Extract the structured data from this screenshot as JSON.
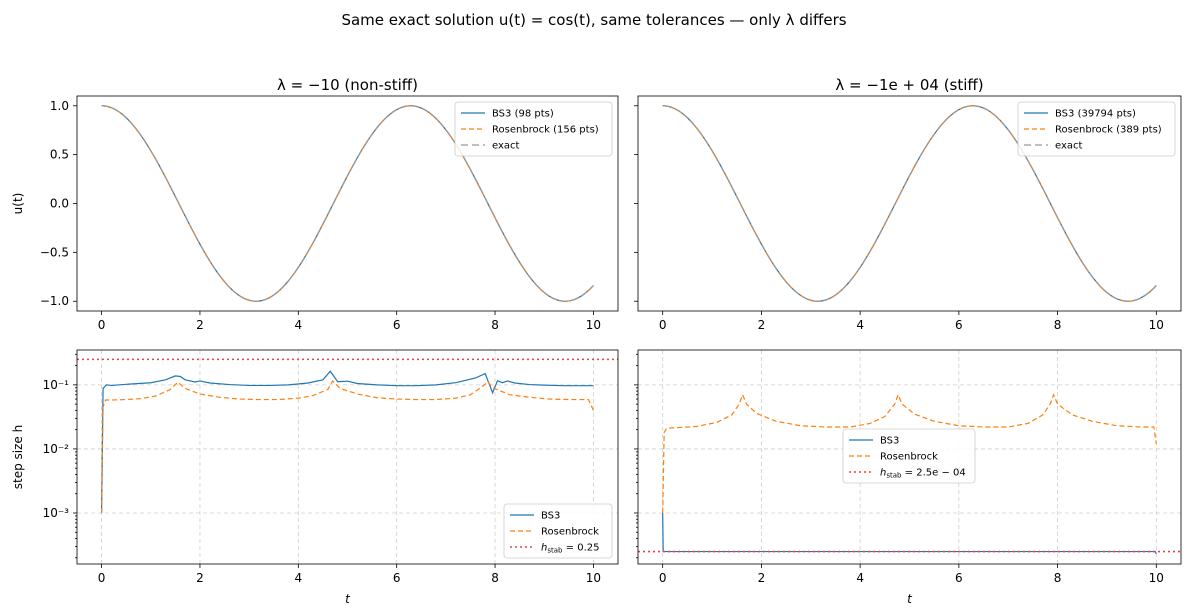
{
  "figure": {
    "suptitle": "Same exact solution u(t) = cos(t), same tolerances — only λ differs"
  },
  "colors": {
    "bs3": "#1f77b4",
    "rosenbrock": "#ff7f0e",
    "exact": "#999999",
    "stab": "#e8453c"
  },
  "chart_data": [
    {
      "id": "top-left",
      "type": "line",
      "title": "λ = −10 (non-stiff)",
      "xlabel": "",
      "ylabel": "u(t)",
      "xlim": [
        -0.5,
        10.5
      ],
      "ylim": [
        -1.1,
        1.1
      ],
      "xscale": "linear",
      "yscale": "linear",
      "xticks": [
        0,
        2,
        4,
        6,
        8,
        10
      ],
      "xtick_labels": [
        "0",
        "2",
        "4",
        "6",
        "8",
        "10"
      ],
      "yticks": [
        1.0,
        0.5,
        0.0,
        -0.5,
        -1.0
      ],
      "ytick_labels": [
        "1.0",
        "0.5",
        "0.0",
        "−0.5",
        "−1.0"
      ],
      "grid": false,
      "legend_position": "top-right",
      "series": [
        {
          "name": "BS3 (98 pts)",
          "style": "solid",
          "color_key": "bs3",
          "function": "cos",
          "t_range": [
            0,
            10
          ]
        },
        {
          "name": "Rosenbrock (156 pts)",
          "style": "dashed",
          "color_key": "rosenbrock",
          "function": "cos",
          "t_range": [
            0,
            10
          ]
        },
        {
          "name": "exact",
          "style": "longdash",
          "color_key": "exact",
          "function": "cos",
          "t_range": [
            0,
            10
          ]
        }
      ]
    },
    {
      "id": "top-right",
      "type": "line",
      "title": "λ = −1e + 04 (stiff)",
      "xlabel": "",
      "ylabel": "",
      "xlim": [
        -0.5,
        10.5
      ],
      "ylim": [
        -1.1,
        1.1
      ],
      "xscale": "linear",
      "yscale": "linear",
      "xticks": [
        0,
        2,
        4,
        6,
        8,
        10
      ],
      "xtick_labels": [
        "0",
        "2",
        "4",
        "6",
        "8",
        "10"
      ],
      "yticks": [
        1.0,
        0.5,
        0.0,
        -0.5,
        -1.0
      ],
      "ytick_labels": [
        "",
        "",
        "",
        "",
        ""
      ],
      "grid": false,
      "legend_position": "top-right",
      "series": [
        {
          "name": "BS3 (39794 pts)",
          "style": "solid",
          "color_key": "bs3",
          "function": "cos",
          "t_range": [
            0,
            10
          ]
        },
        {
          "name": "Rosenbrock (389 pts)",
          "style": "dashed",
          "color_key": "rosenbrock",
          "function": "cos",
          "t_range": [
            0,
            10
          ]
        },
        {
          "name": "exact",
          "style": "longdash",
          "color_key": "exact",
          "function": "cos",
          "t_range": [
            0,
            10
          ]
        }
      ]
    },
    {
      "id": "bottom-left",
      "type": "line",
      "title": "",
      "xlabel": "t",
      "ylabel": "step size h",
      "xlim": [
        -0.5,
        10.5
      ],
      "ylim": [
        0.00016,
        0.35
      ],
      "xscale": "linear",
      "yscale": "log",
      "xticks": [
        0,
        2,
        4,
        6,
        8,
        10
      ],
      "xtick_labels": [
        "0",
        "2",
        "4",
        "6",
        "8",
        "10"
      ],
      "yticks": [
        0.001,
        0.01,
        0.1
      ],
      "ytick_labels": [
        "10⁻³",
        "10⁻²",
        "10⁻¹"
      ],
      "grid": true,
      "legend_position": "bottom-right",
      "series": [
        {
          "name": "BS3",
          "style": "solid",
          "color_key": "bs3",
          "x": [
            0,
            0.03,
            0.1,
            0.2,
            0.5,
            1.0,
            1.3,
            1.5,
            1.6,
            1.7,
            1.9,
            2.0,
            2.2,
            2.6,
            3.0,
            3.4,
            3.8,
            4.2,
            4.5,
            4.65,
            4.8,
            5.0,
            5.2,
            5.6,
            6.0,
            6.4,
            6.8,
            7.2,
            7.6,
            7.8,
            7.95,
            8.05,
            8.15,
            8.25,
            8.4,
            8.7,
            9.0,
            9.4,
            9.8,
            10.0
          ],
          "y": [
            0.001,
            0.088,
            0.1,
            0.098,
            0.102,
            0.108,
            0.12,
            0.138,
            0.135,
            0.12,
            0.111,
            0.115,
            0.107,
            0.101,
            0.098,
            0.098,
            0.1,
            0.107,
            0.12,
            0.163,
            0.112,
            0.114,
            0.105,
            0.1,
            0.097,
            0.097,
            0.1,
            0.108,
            0.128,
            0.15,
            0.075,
            0.116,
            0.108,
            0.115,
            0.107,
            0.101,
            0.099,
            0.097,
            0.097,
            0.097
          ]
        },
        {
          "name": "Rosenbrock",
          "style": "dashed",
          "color_key": "rosenbrock",
          "x": [
            0,
            0.03,
            0.08,
            0.2,
            0.5,
            0.8,
            1.1,
            1.4,
            1.55,
            1.7,
            2.0,
            2.4,
            2.8,
            3.2,
            3.6,
            4.0,
            4.3,
            4.6,
            4.7,
            4.85,
            5.2,
            5.6,
            6.0,
            6.4,
            6.8,
            7.2,
            7.5,
            7.75,
            7.85,
            7.95,
            8.3,
            8.7,
            9.1,
            9.5,
            9.9,
            9.97,
            10.0
          ],
          "y": [
            0.001,
            0.045,
            0.058,
            0.058,
            0.059,
            0.061,
            0.067,
            0.085,
            0.11,
            0.088,
            0.072,
            0.064,
            0.06,
            0.059,
            0.059,
            0.062,
            0.068,
            0.085,
            0.115,
            0.088,
            0.072,
            0.063,
            0.06,
            0.059,
            0.059,
            0.062,
            0.07,
            0.095,
            0.113,
            0.09,
            0.07,
            0.064,
            0.06,
            0.059,
            0.059,
            0.045,
            0.04
          ]
        },
        {
          "name": "h_stab = 0.25",
          "legend_main": "h",
          "legend_sub": "stab",
          "legend_rest": " = 0.25",
          "style": "dotted",
          "color_key": "stab",
          "hline": 0.25
        }
      ]
    },
    {
      "id": "bottom-right",
      "type": "line",
      "title": "",
      "xlabel": "t",
      "ylabel": "",
      "xlim": [
        -0.5,
        10.5
      ],
      "ylim": [
        0.00016,
        0.35
      ],
      "xscale": "linear",
      "yscale": "log",
      "xticks": [
        0,
        2,
        4,
        6,
        8,
        10
      ],
      "xtick_labels": [
        "0",
        "2",
        "4",
        "6",
        "8",
        "10"
      ],
      "yticks": [
        0.001,
        0.01,
        0.1
      ],
      "ytick_labels": [
        "",
        "",
        ""
      ],
      "grid": true,
      "legend_position": "center",
      "series": [
        {
          "name": "BS3",
          "style": "solid",
          "color_key": "bs3",
          "x": [
            0,
            0.01,
            0.02,
            1.0,
            3.0,
            5.0,
            7.0,
            9.0,
            9.98,
            10.0
          ],
          "y": [
            0.001,
            0.00025,
            0.00025,
            0.00025,
            0.00025,
            0.00025,
            0.00025,
            0.00025,
            0.00025,
            0.00023
          ]
        },
        {
          "name": "Rosenbrock",
          "style": "dashed",
          "color_key": "rosenbrock",
          "x": [
            0,
            0.03,
            0.08,
            0.3,
            0.7,
            1.1,
            1.4,
            1.55,
            1.62,
            1.7,
            1.9,
            2.3,
            2.8,
            3.3,
            3.8,
            4.2,
            4.5,
            4.7,
            4.77,
            4.85,
            5.1,
            5.5,
            6.0,
            6.5,
            7.0,
            7.4,
            7.7,
            7.85,
            7.92,
            8.0,
            8.3,
            8.7,
            9.2,
            9.7,
            9.95,
            10.0
          ],
          "y": [
            0.001,
            0.018,
            0.021,
            0.0215,
            0.0225,
            0.026,
            0.034,
            0.05,
            0.07,
            0.05,
            0.036,
            0.027,
            0.023,
            0.022,
            0.022,
            0.025,
            0.032,
            0.05,
            0.07,
            0.05,
            0.035,
            0.027,
            0.023,
            0.022,
            0.022,
            0.025,
            0.034,
            0.05,
            0.07,
            0.05,
            0.034,
            0.027,
            0.023,
            0.022,
            0.022,
            0.012
          ]
        },
        {
          "name": "h_stab = 2.5e − 04",
          "legend_main": "h",
          "legend_sub": "stab",
          "legend_rest": " = 2.5e − 04",
          "style": "dotted",
          "color_key": "stab",
          "hline": 0.00025
        }
      ]
    }
  ]
}
